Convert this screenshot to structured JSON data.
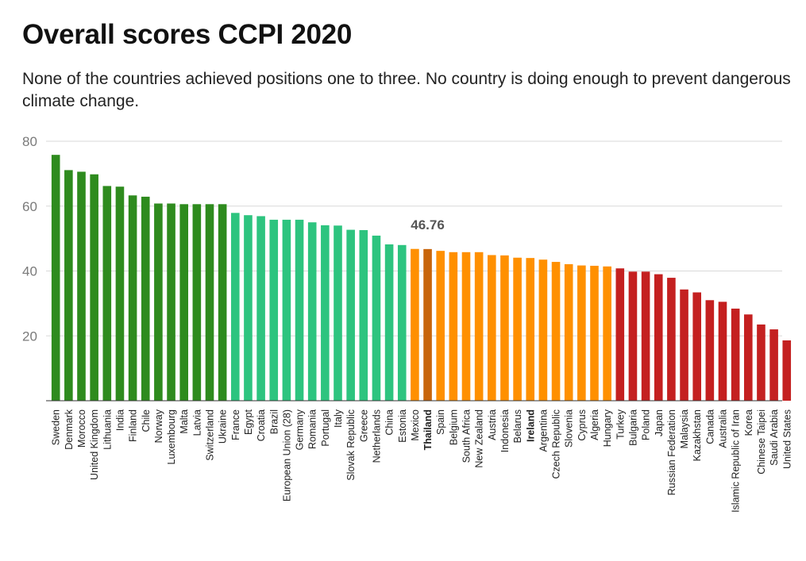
{
  "title": "Overall scores CCPI 2020",
  "subtitle": "None of the countries achieved positions one to three. No country is doing enough to prevent dangerous climate change.",
  "chart_data": {
    "type": "bar",
    "title": "Overall scores CCPI 2020",
    "subtitle": "None of the countries achieved positions one to three. No country is doing enough to prevent dangerous climate change.",
    "xlabel": "",
    "ylabel": "",
    "ylim": [
      0,
      80
    ],
    "yticks": [
      20,
      40,
      60,
      80
    ],
    "grid": true,
    "legend": "none",
    "colors": {
      "very_high": "#2e8b1e",
      "high": "#2dc47f",
      "medium": "#ff9000",
      "highlight": "#c8650b",
      "low": "#c42020"
    },
    "categories": [
      "Sweden",
      "Denmark",
      "Morocco",
      "United Kingdom",
      "Lithuania",
      "India",
      "Finland",
      "Chile",
      "Norway",
      "Luxembourg",
      "Malta",
      "Latvia",
      "Switzerland",
      "Ukraine",
      "France",
      "Egypt",
      "Croatia",
      "Brazil",
      "European Union (28)",
      "Germany",
      "Romania",
      "Portugal",
      "Italy",
      "Slovak Republic",
      "Greece",
      "Netherlands",
      "China",
      "Estonia",
      "Mexico",
      "Thailand",
      "Spain",
      "Belgium",
      "South Africa",
      "New Zealand",
      "Austria",
      "Indonesia",
      "Belarus",
      "Ireland",
      "Argentina",
      "Czech Republic",
      "Slovenia",
      "Cyprus",
      "Algeria",
      "Hungary",
      "Turkey",
      "Bulgaria",
      "Poland",
      "Japan",
      "Russian Federation",
      "Malaysia",
      "Kazakhstan",
      "Canada",
      "Australia",
      "Islamic Republic of Iran",
      "Korea",
      "Chinese Taipei",
      "Saudi Arabia",
      "United States"
    ],
    "values": [
      75.8,
      71.1,
      70.6,
      69.8,
      66.2,
      66.0,
      63.3,
      62.9,
      60.8,
      60.8,
      60.6,
      60.6,
      60.6,
      60.6,
      57.9,
      57.2,
      56.9,
      55.8,
      55.8,
      55.8,
      55.0,
      54.1,
      54.0,
      52.7,
      52.6,
      50.9,
      48.2,
      48.0,
      46.8,
      46.76,
      46.2,
      45.8,
      45.8,
      45.8,
      44.9,
      44.8,
      44.1,
      44.0,
      43.5,
      42.8,
      42.1,
      41.7,
      41.6,
      41.4,
      40.8,
      39.8,
      39.8,
      39.0,
      37.9,
      34.3,
      33.4,
      31.0,
      30.5,
      28.4,
      26.6,
      23.5,
      22.0,
      18.6
    ],
    "groups": [
      "very_high",
      "very_high",
      "very_high",
      "very_high",
      "very_high",
      "very_high",
      "very_high",
      "very_high",
      "very_high",
      "very_high",
      "very_high",
      "very_high",
      "very_high",
      "very_high",
      "high",
      "high",
      "high",
      "high",
      "high",
      "high",
      "high",
      "high",
      "high",
      "high",
      "high",
      "high",
      "high",
      "high",
      "medium",
      "highlight",
      "medium",
      "medium",
      "medium",
      "medium",
      "medium",
      "medium",
      "medium",
      "medium",
      "medium",
      "medium",
      "medium",
      "medium",
      "medium",
      "medium",
      "low",
      "low",
      "low",
      "low",
      "low",
      "low",
      "low",
      "low",
      "low",
      "low",
      "low",
      "low",
      "low",
      "low"
    ],
    "bold_categories": [
      "Thailand",
      "Ireland"
    ],
    "annotation": {
      "category": "Thailand",
      "text": "46.76"
    }
  }
}
